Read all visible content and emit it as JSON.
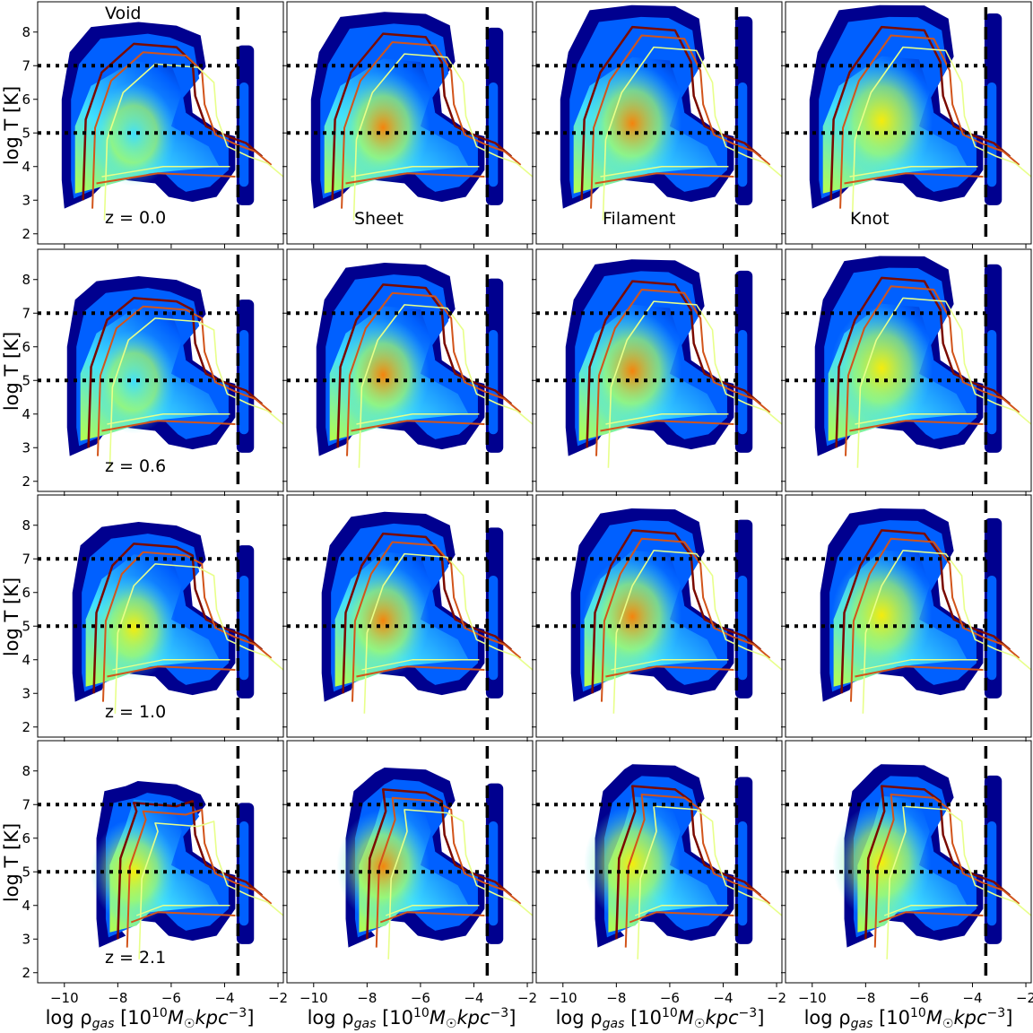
{
  "figure": {
    "ylabel": "log T [K]",
    "xlabel": "log ρgas [10¹⁰M☉kpc⁻³]",
    "row_labels": [
      "z = 0.0",
      "z = 0.6",
      "z = 1.0",
      "z = 2.1"
    ],
    "column_labels": [
      "Void",
      "Sheet",
      "Filament",
      "Knot"
    ],
    "x_ticks": [
      "−10",
      "−8",
      "−6",
      "−4",
      "−2"
    ],
    "y_ticks": [
      "2",
      "3",
      "4",
      "5",
      "6",
      "7",
      "8"
    ],
    "colors": {
      "cold": "#00008f",
      "mid_blue": "#0060ff",
      "cyan": "#3fe0ff",
      "green_yellow": "#b8ff48",
      "yellow": "#ffee00",
      "orange": "#ff8000",
      "contour_dark": "#7a0a00",
      "contour_mid": "#d2541a",
      "contour_light": "#e8ff8a"
    }
  },
  "chart_data": {
    "type": "heatmap",
    "description_of_axes": {
      "x": "log ρgas [10¹⁰M☉kpc⁻³]",
      "y": "log T [K]"
    },
    "xlim": [
      -11,
      -1.8
    ],
    "ylim": [
      1.7,
      8.9
    ],
    "x_ticks": [
      -10,
      -8,
      -6,
      -4,
      -2
    ],
    "y_ticks": [
      2,
      3,
      4,
      5,
      6,
      7,
      8
    ],
    "reference_lines": {
      "vertical_dashed_x": -3.5,
      "horizontal_dotted_y": [
        5,
        7
      ]
    },
    "grid": false,
    "panels": [
      {
        "row": 0,
        "col": 0,
        "z": "0.0",
        "environment": "Void",
        "xmin": -10.2,
        "tmax": 8.3,
        "hot_extent": 0.45,
        "peak": "cyan"
      },
      {
        "row": 0,
        "col": 1,
        "z": "0.0",
        "environment": "Sheet",
        "xmin": -10.2,
        "tmax": 8.6,
        "hot_extent": 0.7,
        "peak": "orange"
      },
      {
        "row": 0,
        "col": 2,
        "z": "0.0",
        "environment": "Filament",
        "xmin": -10.2,
        "tmax": 8.8,
        "hot_extent": 0.85,
        "peak": "orange"
      },
      {
        "row": 0,
        "col": 3,
        "z": "0.0",
        "environment": "Knot",
        "xmin": -10.2,
        "tmax": 8.8,
        "hot_extent": 0.95,
        "peak": "yellow"
      },
      {
        "row": 1,
        "col": 0,
        "z": "0.6",
        "environment": "Void",
        "xmin": -10.0,
        "tmax": 8.1,
        "hot_extent": 0.45,
        "peak": "cyan"
      },
      {
        "row": 1,
        "col": 1,
        "z": "0.6",
        "environment": "Sheet",
        "xmin": -10.0,
        "tmax": 8.5,
        "hot_extent": 0.7,
        "peak": "orange"
      },
      {
        "row": 1,
        "col": 2,
        "z": "0.6",
        "environment": "Filament",
        "xmin": -10.0,
        "tmax": 8.6,
        "hot_extent": 0.85,
        "peak": "orange"
      },
      {
        "row": 1,
        "col": 3,
        "z": "0.6",
        "environment": "Knot",
        "xmin": -10.0,
        "tmax": 8.7,
        "hot_extent": 0.95,
        "peak": "yellow"
      },
      {
        "row": 2,
        "col": 0,
        "z": "1.0",
        "environment": "Void",
        "xmin": -9.8,
        "tmax": 8.1,
        "hot_extent": 0.45,
        "peak": "yellow"
      },
      {
        "row": 2,
        "col": 1,
        "z": "1.0",
        "environment": "Sheet",
        "xmin": -9.8,
        "tmax": 8.4,
        "hot_extent": 0.7,
        "peak": "orange"
      },
      {
        "row": 2,
        "col": 2,
        "z": "1.0",
        "environment": "Filament",
        "xmin": -9.8,
        "tmax": 8.5,
        "hot_extent": 0.85,
        "peak": "orange"
      },
      {
        "row": 2,
        "col": 3,
        "z": "1.0",
        "environment": "Knot",
        "xmin": -9.8,
        "tmax": 8.5,
        "hot_extent": 0.9,
        "peak": "yellow"
      },
      {
        "row": 3,
        "col": 0,
        "z": "2.1",
        "environment": "Void",
        "xmin": -8.9,
        "tmax": 7.7,
        "hot_extent": 0.5,
        "peak": "yellow"
      },
      {
        "row": 3,
        "col": 1,
        "z": "2.1",
        "environment": "Sheet",
        "xmin": -8.9,
        "tmax": 8.1,
        "hot_extent": 0.7,
        "peak": "orange"
      },
      {
        "row": 3,
        "col": 2,
        "z": "2.1",
        "environment": "Filament",
        "xmin": -8.9,
        "tmax": 8.2,
        "hot_extent": 0.8,
        "peak": "yellow"
      },
      {
        "row": 3,
        "col": 3,
        "z": "2.1",
        "environment": "Knot",
        "xmin": -8.9,
        "tmax": 8.2,
        "hot_extent": 0.85,
        "peak": "yellow"
      }
    ]
  }
}
